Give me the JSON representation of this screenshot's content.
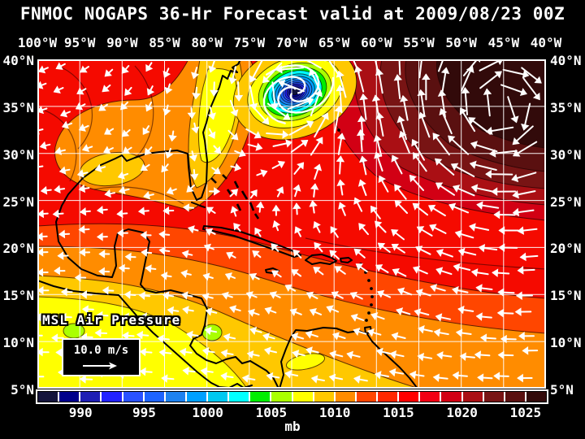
{
  "title": "FNMOC NOGAPS 36-Hr Forecast valid at 2009/08/23 00Z",
  "map": {
    "lon_labels": [
      "100°W",
      "95°W",
      "90°W",
      "85°W",
      "80°W",
      "75°W",
      "70°W",
      "65°W",
      "60°W",
      "55°W",
      "50°W",
      "45°W",
      "40°W"
    ],
    "lat_labels": [
      "40°N",
      "35°N",
      "30°N",
      "25°N",
      "20°N",
      "15°N",
      "10°N",
      "5°N"
    ],
    "overlay_label": "MSL Air Pressure",
    "wind_legend": {
      "speed_label": "10.0 m/s"
    },
    "depicted_features": {
      "tropical_cyclone_center": {
        "lon": "70W",
        "lat": "36.5N"
      },
      "high_pressure_center": {
        "region": "northeast corner, ~1026 mb"
      },
      "trade_wind_belt": "easterly (westward) arrows south of 25N"
    }
  },
  "colorbar": {
    "unit": "mb",
    "tick_labels": [
      "990",
      "995",
      "1000",
      "1005",
      "1010",
      "1015",
      "1020",
      "1025"
    ],
    "cell_colors": [
      "#14143c",
      "#00008b",
      "#1e1eb4",
      "#2222ff",
      "#2a52ff",
      "#1e64ff",
      "#1e82f0",
      "#00a0ff",
      "#00c8f0",
      "#00ffff",
      "#00ee00",
      "#aaff00",
      "#ffff00",
      "#ffc800",
      "#ff8c00",
      "#ff4600",
      "#ff2800",
      "#ff0000",
      "#f20014",
      "#d20014",
      "#aa0f14",
      "#781414",
      "#5a1010",
      "#320a0a"
    ]
  },
  "colors": {
    "background": "#000000",
    "text": "#ffffff",
    "grid": "#ffffff",
    "coastline": "#000000",
    "wind_arrow": "#ffffff",
    "base_field": "#f50a00"
  }
}
